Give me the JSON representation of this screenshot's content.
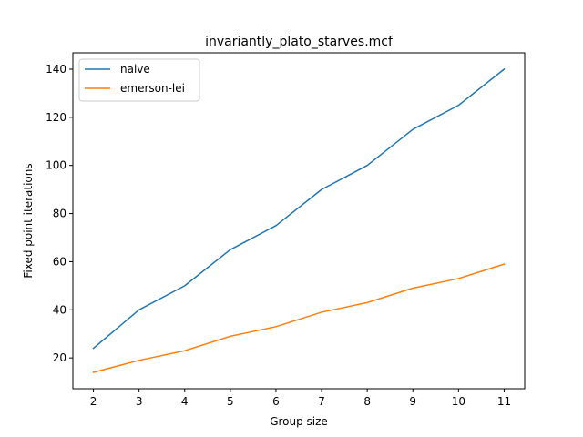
{
  "chart_data": {
    "type": "line",
    "title": "invariantly_plato_starves.mcf",
    "xlabel": "Group size",
    "ylabel": "Fixed point iterations",
    "x": [
      2,
      3,
      4,
      5,
      6,
      7,
      8,
      9,
      10,
      11
    ],
    "xlim": [
      1.55,
      11.45
    ],
    "ylim": [
      7.2,
      146.8
    ],
    "xticks": [
      2,
      3,
      4,
      5,
      6,
      7,
      8,
      9,
      10,
      11
    ],
    "yticks": [
      20,
      40,
      60,
      80,
      100,
      120,
      140
    ],
    "grid": false,
    "legend_position": "upper-left",
    "series": [
      {
        "name": "naive",
        "color": "#1f77b4",
        "values": [
          24,
          40,
          50,
          65,
          75,
          90,
          100,
          115,
          125,
          140
        ]
      },
      {
        "name": "emerson-lei",
        "color": "#ff7f0e",
        "values": [
          14,
          19,
          23,
          29,
          33,
          39,
          43,
          49,
          53,
          59
        ]
      }
    ]
  }
}
